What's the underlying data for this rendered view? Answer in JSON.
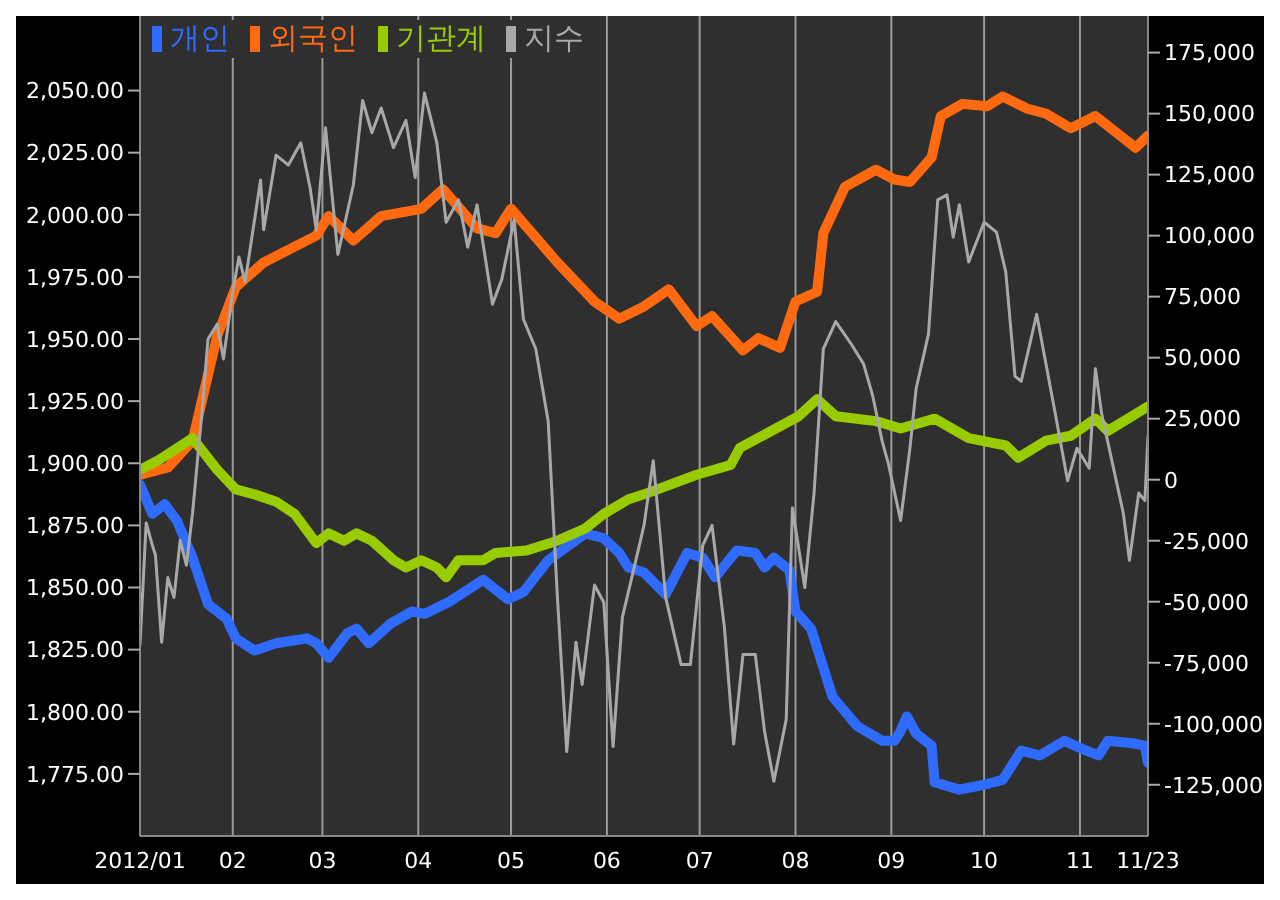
{
  "chart_data": {
    "type": "line",
    "legend": "top left",
    "grid": "x",
    "marker": "none",
    "xlim": [
      "2012-01-02",
      "2012-11-23"
    ],
    "xticks": [
      {
        "value": "2012-01-02",
        "label": "2012/01"
      },
      {
        "value": "2012-02-01",
        "label": "02"
      },
      {
        "value": "2012-03-01",
        "label": "03"
      },
      {
        "value": "2012-04-01",
        "label": "04"
      },
      {
        "value": "2012-05-01",
        "label": "05"
      },
      {
        "value": "2012-06-01",
        "label": "06"
      },
      {
        "value": "2012-07-01",
        "label": "07"
      },
      {
        "value": "2012-08-01",
        "label": "08"
      },
      {
        "value": "2012-09-01",
        "label": "09"
      },
      {
        "value": "2012-10-01",
        "label": "10"
      },
      {
        "value": "2012-11-01",
        "label": "11"
      },
      {
        "value": "2012-11-23",
        "label": "11/23"
      }
    ],
    "ylim": [
      1750,
      2080
    ],
    "yticks": [
      {
        "value": 1775,
        "label": "1,775.00"
      },
      {
        "value": 1800,
        "label": "1,800.00"
      },
      {
        "value": 1825,
        "label": "1,825.00"
      },
      {
        "value": 1850,
        "label": "1,850.00"
      },
      {
        "value": 1875,
        "label": "1,875.00"
      },
      {
        "value": 1900,
        "label": "1,900.00"
      },
      {
        "value": 1925,
        "label": "1,925.00"
      },
      {
        "value": 1950,
        "label": "1,950.00"
      },
      {
        "value": 1975,
        "label": "1,975.00"
      },
      {
        "value": 2000,
        "label": "2,000.00"
      },
      {
        "value": 2025,
        "label": "2,025.00"
      },
      {
        "value": 2050,
        "label": "2,050.00"
      }
    ],
    "y2lim": [
      -146000,
      190000
    ],
    "y2ticks": [
      {
        "value": -125000,
        "label": "-125,000"
      },
      {
        "value": -100000,
        "label": "-100,000"
      },
      {
        "value": -75000,
        "label": "-75,000"
      },
      {
        "value": -50000,
        "label": "-50,000"
      },
      {
        "value": -25000,
        "label": "-25,000"
      },
      0,
      {
        "value": 25000,
        "label": "25,000"
      },
      {
        "value": 50000,
        "label": "50,000"
      },
      {
        "value": 75000,
        "label": "75,000"
      },
      {
        "value": 100000,
        "label": "100,000"
      },
      {
        "value": 125000,
        "label": "125,000"
      },
      {
        "value": 150000,
        "label": "150,000"
      },
      {
        "value": 175000,
        "label": "175,000"
      }
    ],
    "series": [
      {
        "name": "개인",
        "color": "#2f6bff",
        "axis": "y2",
        "x": [
          "2012-01-02",
          "2012-01-06",
          "2012-01-10",
          "2012-01-14",
          "2012-01-19",
          "2012-01-24",
          "2012-01-30",
          "2012-02-02",
          "2012-02-08",
          "2012-02-15",
          "2012-02-25",
          "2012-02-28",
          "2012-03-03",
          "2012-03-09",
          "2012-03-12",
          "2012-03-16",
          "2012-03-23",
          "2012-03-30",
          "2012-04-03",
          "2012-04-11",
          "2012-04-22",
          "2012-04-30",
          "2012-05-05",
          "2012-05-13",
          "2012-05-25",
          "2012-05-31",
          "2012-06-05",
          "2012-06-08",
          "2012-06-13",
          "2012-06-20",
          "2012-06-27",
          "2012-07-02",
          "2012-07-06",
          "2012-07-13",
          "2012-07-19",
          "2012-07-22",
          "2012-07-25",
          "2012-07-30",
          "2012-08-01",
          "2012-08-06",
          "2012-08-09",
          "2012-08-13",
          "2012-08-21",
          "2012-08-29",
          "2012-09-02",
          "2012-09-04",
          "2012-09-06",
          "2012-09-09",
          "2012-09-14",
          "2012-09-15",
          "2012-09-23",
          "2012-10-01",
          "2012-10-07",
          "2012-10-10",
          "2012-10-13",
          "2012-10-19",
          "2012-10-27",
          "2012-11-03",
          "2012-11-07",
          "2012-11-10",
          "2012-11-18",
          "2012-11-22",
          "2012-11-23"
        ],
        "values": [
          -2000,
          -14000,
          -10000,
          -17000,
          -32000,
          -51000,
          -57000,
          -65000,
          -70000,
          -67000,
          -65000,
          -67000,
          -73000,
          -63000,
          -61000,
          -67000,
          -59000,
          -54000,
          -55000,
          -50000,
          -41000,
          -49000,
          -46000,
          -33000,
          -22000,
          -24000,
          -30000,
          -36000,
          -38000,
          -47000,
          -30000,
          -32000,
          -40000,
          -29000,
          -30000,
          -36000,
          -32000,
          -37000,
          -54000,
          -61000,
          -73000,
          -89000,
          -101000,
          -107000,
          -107000,
          -103000,
          -97000,
          -104000,
          -109000,
          -124000,
          -127000,
          -125000,
          -123000,
          -117000,
          -111000,
          -113000,
          -107000,
          -111000,
          -113000,
          -107000,
          -108000,
          -109000,
          -116000
        ]
      },
      {
        "name": "외국인",
        "color": "#ff6a10",
        "axis": "y2",
        "x": [
          "2012-01-02",
          "2012-01-11",
          "2012-01-19",
          "2012-01-24",
          "2012-01-27",
          "2012-02-02",
          "2012-02-11",
          "2012-02-28",
          "2012-03-03",
          "2012-03-11",
          "2012-03-20",
          "2012-04-02",
          "2012-04-09",
          "2012-04-20",
          "2012-04-26",
          "2012-05-01",
          "2012-05-16",
          "2012-05-28",
          "2012-06-05",
          "2012-06-13",
          "2012-06-21",
          "2012-06-30",
          "2012-07-05",
          "2012-07-15",
          "2012-07-20",
          "2012-07-27",
          "2012-08-01",
          "2012-08-08",
          "2012-08-10",
          "2012-08-17",
          "2012-08-27",
          "2012-09-02",
          "2012-09-07",
          "2012-09-14",
          "2012-09-17",
          "2012-09-24",
          "2012-10-02",
          "2012-10-07",
          "2012-10-15",
          "2012-10-21",
          "2012-10-29",
          "2012-11-06",
          "2012-11-14",
          "2012-11-19",
          "2012-11-23"
        ],
        "values": [
          2000,
          5000,
          16000,
          43000,
          59000,
          79000,
          89000,
          100000,
          108000,
          98000,
          108000,
          111000,
          119000,
          103000,
          101000,
          111000,
          89000,
          73000,
          66000,
          71000,
          78000,
          63000,
          67000,
          53000,
          58000,
          54000,
          73000,
          77000,
          101000,
          120000,
          127000,
          123000,
          122000,
          132000,
          149000,
          154000,
          153000,
          157000,
          152000,
          150000,
          144000,
          149000,
          141000,
          136000,
          141000
        ]
      },
      {
        "name": "기관계",
        "color": "#99cc00",
        "axis": "y2",
        "x": [
          "2012-01-02",
          "2012-01-08",
          "2012-01-19",
          "2012-01-27",
          "2012-02-02",
          "2012-02-08",
          "2012-02-15",
          "2012-02-21",
          "2012-02-28",
          "2012-03-03",
          "2012-03-08",
          "2012-03-12",
          "2012-03-17",
          "2012-03-24",
          "2012-03-28",
          "2012-04-02",
          "2012-04-07",
          "2012-04-10",
          "2012-04-14",
          "2012-04-22",
          "2012-04-26",
          "2012-05-06",
          "2012-05-16",
          "2012-05-25",
          "2012-05-31",
          "2012-06-08",
          "2012-06-13",
          "2012-06-30",
          "2012-07-11",
          "2012-07-14",
          "2012-08-02",
          "2012-08-08",
          "2012-08-14",
          "2012-08-27",
          "2012-09-04",
          "2012-09-15",
          "2012-09-26",
          "2012-10-08",
          "2012-10-12",
          "2012-10-21",
          "2012-10-29",
          "2012-11-06",
          "2012-11-10",
          "2012-11-23"
        ],
        "values": [
          4000,
          8000,
          17000,
          4000,
          -4000,
          -6000,
          -9000,
          -14000,
          -26000,
          -22000,
          -25000,
          -22000,
          -25000,
          -33000,
          -36000,
          -33000,
          -36000,
          -40000,
          -33000,
          -33000,
          -30000,
          -29000,
          -25000,
          -20000,
          -14000,
          -8000,
          -6000,
          2000,
          6000,
          13000,
          26000,
          33000,
          26000,
          24000,
          21000,
          25000,
          17000,
          14000,
          9000,
          16000,
          18000,
          25000,
          20000,
          30000
        ]
      },
      {
        "name": "지수",
        "color": "#a8a8a8",
        "x": [
          "2012-01-02",
          "2012-01-04",
          "2012-01-06",
          "2012-01-07",
          "2012-01-09",
          "2012-01-11",
          "2012-01-13",
          "2012-01-15",
          "2012-01-17",
          "2012-01-19",
          "2012-01-22",
          "2012-01-24",
          "2012-01-27",
          "2012-01-29",
          "2012-02-01",
          "2012-02-03",
          "2012-02-05",
          "2012-02-10",
          "2012-02-11",
          "2012-02-15",
          "2012-02-19",
          "2012-02-23",
          "2012-02-26",
          "2012-02-28",
          "2012-03-02",
          "2012-03-06",
          "2012-03-11",
          "2012-03-14",
          "2012-03-17",
          "2012-03-20",
          "2012-03-24",
          "2012-03-28",
          "2012-03-31",
          "2012-04-03",
          "2012-04-07",
          "2012-04-10",
          "2012-04-14",
          "2012-04-17",
          "2012-04-20",
          "2012-04-25",
          "2012-04-28",
          "2012-05-02",
          "2012-05-05",
          "2012-05-09",
          "2012-05-13",
          "2012-05-16",
          "2012-05-19",
          "2012-05-22",
          "2012-05-24",
          "2012-05-28",
          "2012-05-31",
          "2012-06-03",
          "2012-06-06",
          "2012-06-10",
          "2012-06-13",
          "2012-06-16",
          "2012-06-20",
          "2012-06-25",
          "2012-06-28",
          "2012-07-02",
          "2012-07-05",
          "2012-07-09",
          "2012-07-12",
          "2012-07-15",
          "2012-07-19",
          "2012-07-22",
          "2012-07-25",
          "2012-07-29",
          "2012-07-31",
          "2012-08-04",
          "2012-08-07",
          "2012-08-10",
          "2012-08-14",
          "2012-08-19",
          "2012-08-23",
          "2012-08-26",
          "2012-08-29",
          "2012-08-31",
          "2012-09-04",
          "2012-09-07",
          "2012-09-09",
          "2012-09-13",
          "2012-09-16",
          "2012-09-19",
          "2012-09-21",
          "2012-09-23",
          "2012-09-26",
          "2012-10-01",
          "2012-10-05",
          "2012-10-08",
          "2012-10-11",
          "2012-10-13",
          "2012-10-18",
          "2012-10-21",
          "2012-10-24",
          "2012-10-28",
          "2012-10-31",
          "2012-11-04",
          "2012-11-06",
          "2012-11-08",
          "2012-11-15",
          "2012-11-17",
          "2012-11-20",
          "2012-11-22",
          "2012-11-23"
        ],
        "values": [
          1827,
          1876,
          1867,
          1863,
          1828,
          1854,
          1846,
          1869,
          1859,
          1880,
          1920,
          1950,
          1956,
          1942,
          1969,
          1983,
          1973,
          2014,
          1994,
          2024,
          2020,
          2029,
          2011,
          1994,
          2035,
          1984,
          2012,
          2046,
          2033,
          2043,
          2027,
          2038,
          2015,
          2049,
          2029,
          1997,
          2006,
          1987,
          2004,
          1964,
          1974,
          1998,
          1958,
          1946,
          1917,
          1846,
          1784,
          1828,
          1811,
          1851,
          1844,
          1786,
          1838,
          1859,
          1875,
          1901,
          1846,
          1819,
          1819,
          1867,
          1875,
          1834,
          1787,
          1823,
          1823,
          1792,
          1772,
          1797,
          1882,
          1850,
          1888,
          1946,
          1957,
          1948,
          1940,
          1927,
          1909,
          1900,
          1877,
          1906,
          1930,
          1952,
          2006,
          2008,
          1991,
          2004,
          1981,
          1997,
          1993,
          1977,
          1935,
          1933,
          1960,
          1940,
          1920,
          1893,
          1906,
          1898,
          1938,
          1920,
          1880,
          1861,
          1888,
          1885,
          1911
        ]
      }
    ]
  }
}
